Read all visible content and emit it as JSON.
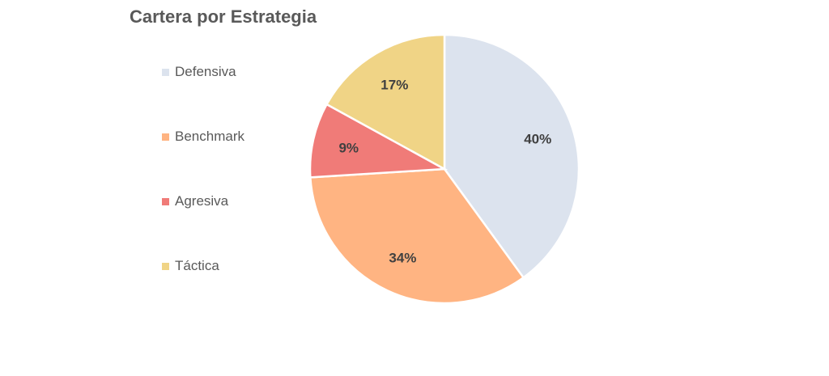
{
  "chart_data": {
    "type": "pie",
    "title": "Cartera por Estrategia",
    "legend_position": "left",
    "slices": [
      {
        "label": "Defensiva",
        "value": 40,
        "display": "40%",
        "color": "#DCE3EE"
      },
      {
        "label": "Benchmark",
        "value": 34,
        "display": "34%",
        "color": "#FFB482"
      },
      {
        "label": "Agresiva",
        "value": 9,
        "display": "9%",
        "color": "#F07B78"
      },
      {
        "label": "Táctica",
        "value": 17,
        "display": "17%",
        "color": "#F0D486"
      }
    ]
  }
}
